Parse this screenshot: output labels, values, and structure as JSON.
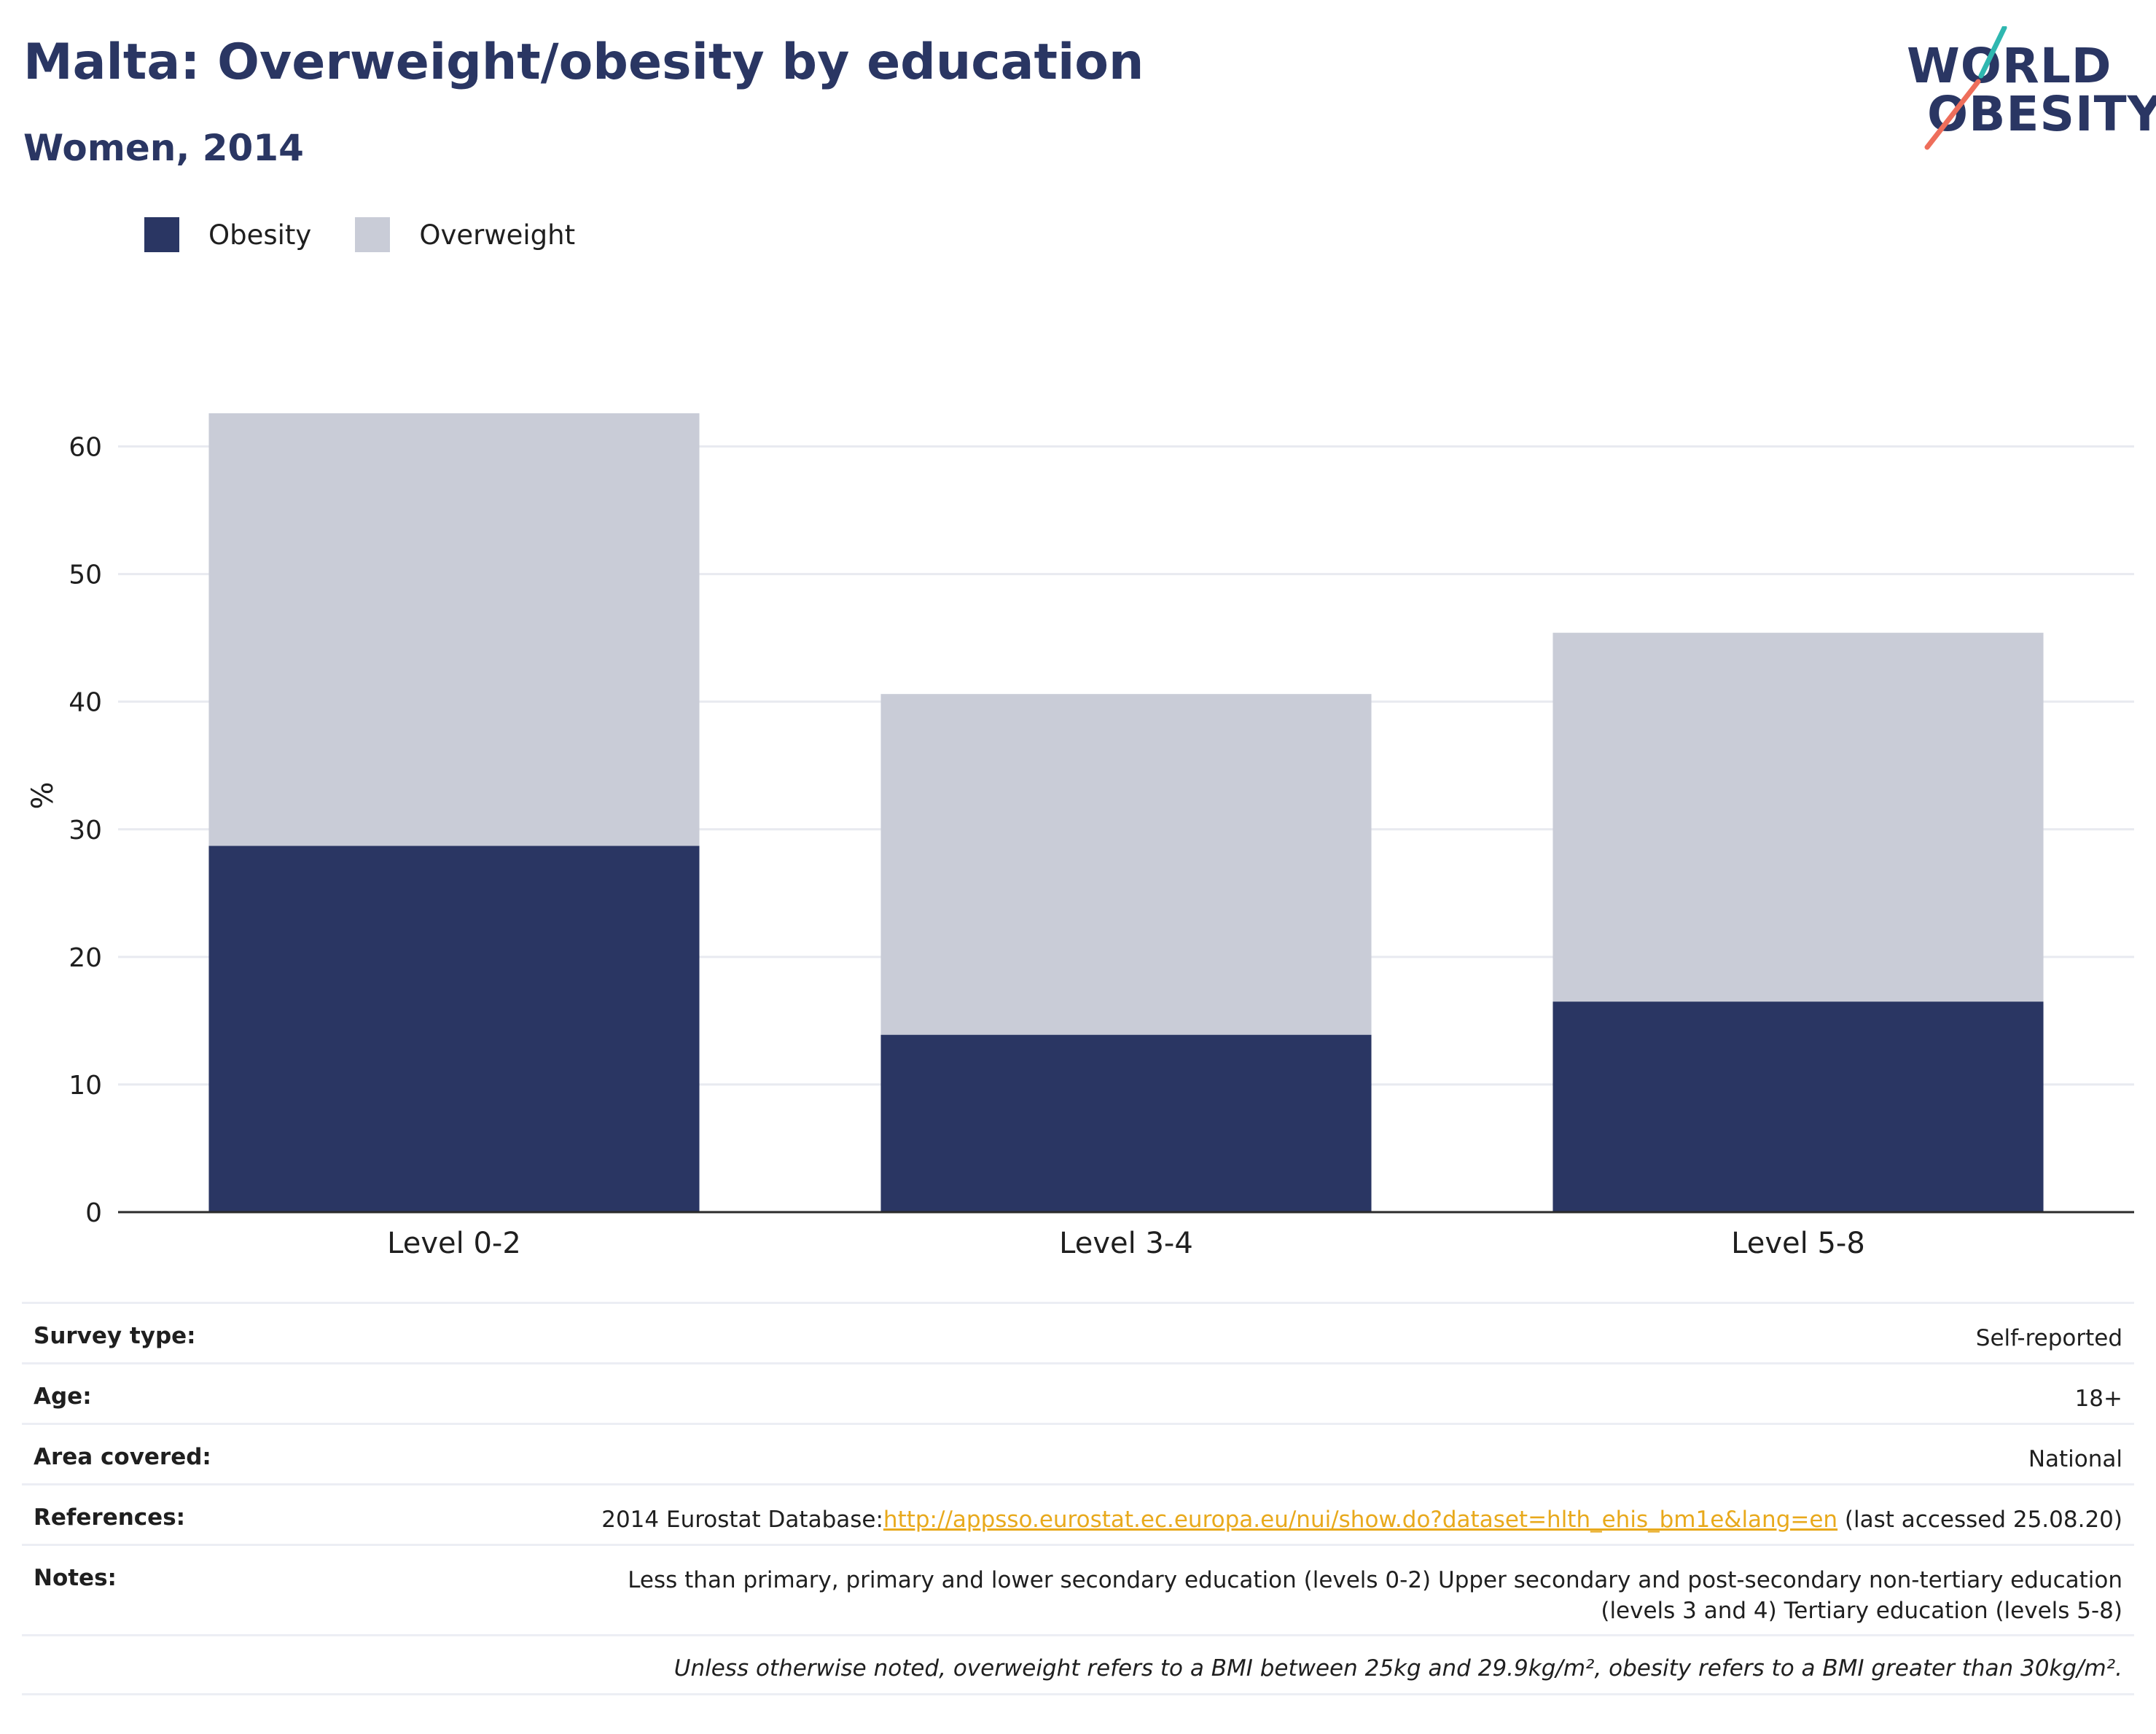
{
  "header": {
    "title": "Malta: Overweight/obesity by education",
    "subtitle": "Women, 2014"
  },
  "logo": {
    "line1": "WORLD",
    "line2": "OBESITY",
    "slash_colors": [
      "#2fb7b0",
      "#ee6e5b"
    ]
  },
  "colors": {
    "obesity": "#2a3663",
    "overweight": "#c9ccd7",
    "grid": "#e8eaf0",
    "axis": "#2b2b2b",
    "link": "#e8a91c"
  },
  "chart_data": {
    "type": "bar",
    "stacked": true,
    "categories": [
      "Level 0-2",
      "Level 3-4",
      "Level 5-8"
    ],
    "series": [
      {
        "name": "Obesity",
        "values": [
          28.7,
          13.9,
          16.5
        ]
      },
      {
        "name": "Overweight",
        "values": [
          33.9,
          26.7,
          28.9
        ]
      }
    ],
    "ylabel": "%",
    "ylim": [
      0,
      63
    ],
    "yticks": [
      0,
      10,
      20,
      30,
      40,
      50,
      60
    ],
    "grid": true,
    "legend_position": "top-left"
  },
  "meta": {
    "rows": [
      {
        "key": "Survey type:",
        "value": "Self-reported"
      },
      {
        "key": "Age:",
        "value": "18+"
      },
      {
        "key": "Area covered:",
        "value": "National"
      }
    ],
    "references": {
      "key": "References:",
      "prefix": "2014 Eurostat Database:",
      "link": "http://appsso.eurostat.ec.europa.eu/nui/show.do?dataset=hlth_ehis_bm1e&lang=en",
      "suffix": " (last accessed 25.08.20)"
    },
    "notes": {
      "key": "Notes:",
      "line1": "Less than primary, primary and lower secondary education (levels 0-2) Upper secondary and post-secondary non-tertiary education",
      "line2": "(levels 3 and 4) Tertiary education (levels 5-8)"
    },
    "footnote": "Unless otherwise noted, overweight refers to a BMI between 25kg and 29.9kg/m², obesity refers to a BMI greater than 30kg/m²."
  }
}
